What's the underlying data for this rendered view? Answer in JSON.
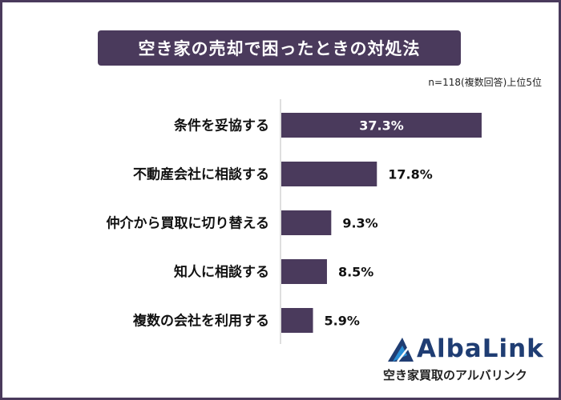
{
  "note": "n=118(複数回答)上位5位",
  "chart_data": {
    "type": "bar",
    "orientation": "horizontal",
    "title": "空き家の売却で困ったときの対処法",
    "categories": [
      "条件を妥協する",
      "不動産会社に相談する",
      "仲介から買取に切り替える",
      "知人に相談する",
      "複数の会社を利用する"
    ],
    "values": [
      37.3,
      17.8,
      9.3,
      8.5,
      5.9
    ],
    "value_labels": [
      "37.3%",
      "17.8%",
      "9.3%",
      "8.5%",
      "5.9%"
    ],
    "xlim": [
      0,
      38.5
    ],
    "bar_color": "#4a3a5c",
    "grid": false
  },
  "logo": {
    "name": "AlbaLink",
    "tagline": "空き家買取のアルバリンク",
    "colors": {
      "primary": "#1f3d73",
      "accent": "#2a8fd6"
    }
  }
}
